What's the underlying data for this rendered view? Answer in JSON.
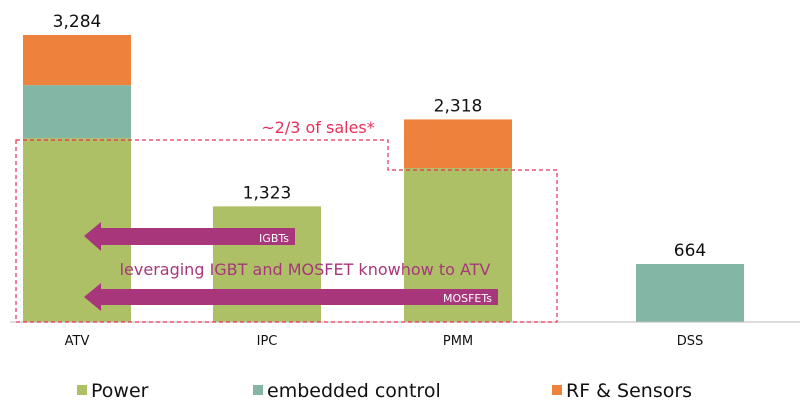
{
  "chart_data": {
    "type": "bar",
    "stacked": true,
    "categories": [
      "ATV",
      "IPC",
      "PMM",
      "DSS"
    ],
    "series": [
      {
        "name": "Power",
        "color": "#adc066",
        "values": [
          2105,
          1323,
          1762,
          0
        ]
      },
      {
        "name": "embedded control",
        "color": "#84b6a6",
        "values": [
          606,
          0,
          0,
          664
        ]
      },
      {
        "name": "RF & Sensors",
        "color": "#ee823c",
        "values": [
          573,
          0,
          556,
          0
        ]
      }
    ],
    "totals": [
      "3,284",
      "1,323",
      "2,318",
      "664"
    ],
    "ylim": [
      0,
      3300
    ],
    "grid": false,
    "legend_position": "bottom",
    "annotations": {
      "sales_box_label": "~2/3 of sales*",
      "sales_box_color": "#e8305a",
      "arrow_igbt": "IGBTs",
      "arrow_mosfet": "MOSFETs",
      "arrow_color": "#a8367a",
      "knowhow_text": "leveraging IGBT and MOSFET knowhow to ATV"
    }
  }
}
